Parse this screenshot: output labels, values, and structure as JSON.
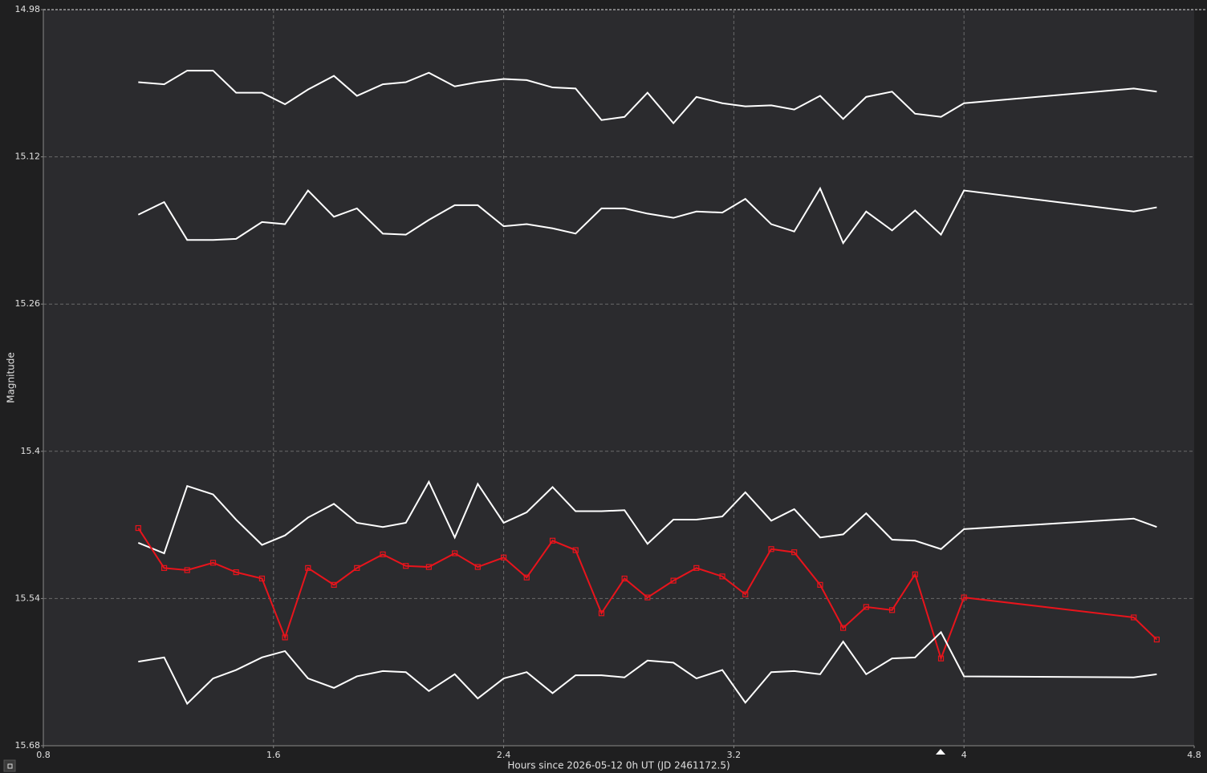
{
  "chart_data": {
    "type": "line",
    "x_label": "Hours since 2026-05-12 0h UT (JD 2461172.5)",
    "y_label": "Magnitude",
    "xlim": [
      0.8,
      4.8
    ],
    "xticks": [
      0.8,
      1.6,
      2.4,
      3.2,
      4,
      4.8
    ],
    "ylim": [
      14.98,
      15.68
    ],
    "yticks": [
      14.98,
      15.12,
      15.26,
      15.4,
      15.54,
      15.68
    ],
    "y_inverted": true,
    "grid": true,
    "x": [
      1.13,
      1.22,
      1.3,
      1.39,
      1.47,
      1.56,
      1.64,
      1.72,
      1.81,
      1.89,
      1.98,
      2.06,
      2.14,
      2.23,
      2.31,
      2.4,
      2.48,
      2.57,
      2.65,
      2.74,
      2.82,
      2.9,
      2.99,
      3.07,
      3.16,
      3.24,
      3.33,
      3.41,
      3.5,
      3.58,
      3.66,
      3.75,
      3.83,
      3.92,
      4.0,
      4.59,
      4.67
    ],
    "series": [
      {
        "color": "#ffffff",
        "markers": false,
        "values": [
          15.049,
          15.051,
          15.038,
          15.038,
          15.059,
          15.059,
          15.07,
          15.056,
          15.043,
          15.062,
          15.051,
          15.049,
          15.04,
          15.053,
          15.049,
          15.046,
          15.047,
          15.054,
          15.055,
          15.085,
          15.082,
          15.059,
          15.088,
          15.063,
          15.069,
          15.072,
          15.071,
          15.075,
          15.062,
          15.084,
          15.063,
          15.058,
          15.079,
          15.082,
          15.069,
          15.055,
          15.058
        ]
      },
      {
        "color": "#ffffff",
        "markers": false,
        "values": [
          15.175,
          15.163,
          15.199,
          15.199,
          15.198,
          15.182,
          15.184,
          15.152,
          15.177,
          15.169,
          15.193,
          15.194,
          15.18,
          15.166,
          15.166,
          15.186,
          15.184,
          15.188,
          15.193,
          15.169,
          15.169,
          15.174,
          15.178,
          15.172,
          15.173,
          15.16,
          15.184,
          15.191,
          15.15,
          15.202,
          15.172,
          15.19,
          15.171,
          15.194,
          15.152,
          15.172,
          15.168
        ]
      },
      {
        "color": "#ffffff",
        "markers": false,
        "values": [
          15.487,
          15.497,
          15.433,
          15.441,
          15.465,
          15.489,
          15.48,
          15.463,
          15.45,
          15.468,
          15.472,
          15.468,
          15.429,
          15.482,
          15.431,
          15.468,
          15.458,
          15.434,
          15.457,
          15.457,
          15.456,
          15.488,
          15.465,
          15.465,
          15.462,
          15.439,
          15.466,
          15.455,
          15.482,
          15.479,
          15.459,
          15.484,
          15.485,
          15.493,
          15.474,
          15.464,
          15.472
        ]
      },
      {
        "color": "#e8141c",
        "markers": true,
        "values": [
          15.473,
          15.511,
          15.513,
          15.506,
          15.515,
          15.521,
          15.577,
          15.511,
          15.527,
          15.511,
          15.498,
          15.509,
          15.51,
          15.497,
          15.51,
          15.501,
          15.52,
          15.485,
          15.494,
          15.554,
          15.521,
          15.539,
          15.523,
          15.511,
          15.519,
          15.536,
          15.493,
          15.496,
          15.527,
          15.568,
          15.548,
          15.551,
          15.517,
          15.597,
          15.539,
          15.558,
          15.579
        ]
      },
      {
        "color": "#ffffff",
        "markers": false,
        "values": [
          15.6,
          15.596,
          15.64,
          15.616,
          15.608,
          15.596,
          15.59,
          15.616,
          15.625,
          15.614,
          15.609,
          15.61,
          15.628,
          15.612,
          15.635,
          15.616,
          15.61,
          15.63,
          15.613,
          15.613,
          15.615,
          15.599,
          15.601,
          15.616,
          15.608,
          15.639,
          15.61,
          15.609,
          15.612,
          15.581,
          15.612,
          15.597,
          15.596,
          15.572,
          15.614,
          15.615,
          15.612
        ]
      }
    ]
  }
}
